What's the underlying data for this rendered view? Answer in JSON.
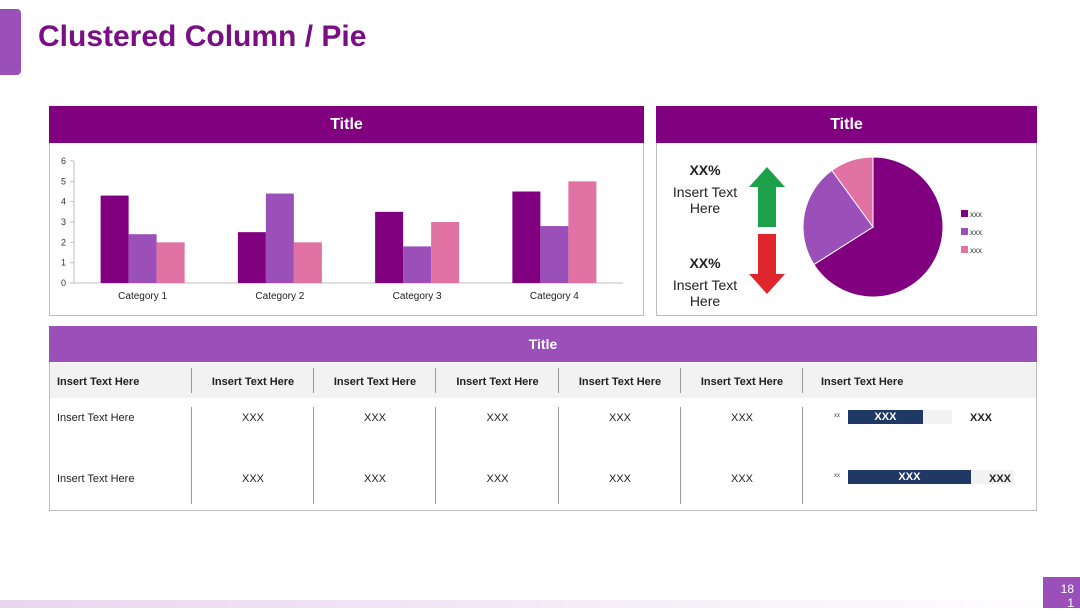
{
  "slide": {
    "title": "Clustered Column / Pie",
    "page_number": "18\n1"
  },
  "column_panel": {
    "title": "Title"
  },
  "pie_panel": {
    "title": "Title",
    "kpis": [
      {
        "value": "XX%",
        "text": "Insert Text Here",
        "direction": "up",
        "color": "#1ca14a"
      },
      {
        "value": "XX%",
        "text": "Insert Text Here",
        "direction": "down",
        "color": "#e0262d"
      }
    ],
    "legend": [
      "xxx",
      "xxx",
      "xxx"
    ]
  },
  "chart_data": [
    {
      "type": "bar",
      "categories": [
        "Category 1",
        "Category 2",
        "Category 3",
        "Category 4"
      ],
      "series": [
        {
          "values": [
            4.3,
            2.5,
            3.5,
            4.5
          ],
          "color": "#800080"
        },
        {
          "values": [
            2.4,
            4.4,
            1.8,
            2.8
          ],
          "color": "#9b4fb8"
        },
        {
          "values": [
            2.0,
            2.0,
            3.0,
            5.0
          ],
          "color": "#e072a4"
        }
      ],
      "yticks": [
        "0",
        "1",
        "2",
        "3",
        "4",
        "5",
        "6"
      ],
      "ylim": [
        0,
        6
      ],
      "grid": false,
      "legend": "none"
    },
    {
      "type": "pie",
      "labels": [
        "xxx",
        "xxx",
        "xxx"
      ],
      "values": [
        66,
        24,
        10
      ],
      "colors": [
        "#800080",
        "#9b4fb8",
        "#e072a4"
      ],
      "legend": "right"
    }
  ],
  "table": {
    "title": "Title",
    "headers": [
      "Insert Text Here",
      "Insert Text Here",
      "Insert Text Here",
      "Insert Text Here",
      "Insert Text Here",
      "Insert Text Here",
      "Insert Text Here"
    ],
    "rows": [
      {
        "label": "Insert Text Here",
        "cells": [
          "XXX",
          "XXX",
          "XXX",
          "XXX",
          "XXX"
        ],
        "tiny": "xx",
        "bar_label": "XXX",
        "bar_value": "XXX",
        "bar_fraction": 0.72
      },
      {
        "label": "Insert Text Here",
        "cells": [
          "XXX",
          "XXX",
          "XXX",
          "XXX",
          "XXX"
        ],
        "tiny": "xx",
        "bar_label": "XXX",
        "bar_value": "XXX",
        "bar_fraction": 0.74
      }
    ]
  }
}
